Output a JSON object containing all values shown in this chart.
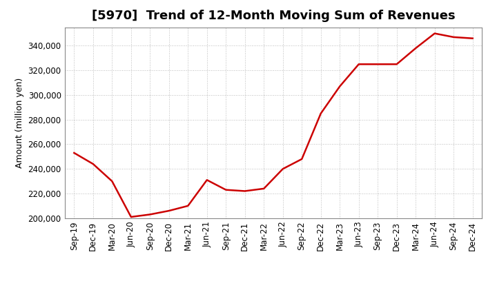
{
  "title": "[5970]  Trend of 12-Month Moving Sum of Revenues",
  "ylabel": "Amount (million yen)",
  "line_color": "#cc0000",
  "background_color": "#ffffff",
  "plot_bg_color": "#ffffff",
  "grid_color": "#aaaaaa",
  "ylim": [
    200000,
    355000
  ],
  "yticks": [
    200000,
    220000,
    240000,
    260000,
    280000,
    300000,
    320000,
    340000
  ],
  "x_labels": [
    "Sep-19",
    "Dec-19",
    "Mar-20",
    "Jun-20",
    "Sep-20",
    "Dec-20",
    "Mar-21",
    "Jun-21",
    "Sep-21",
    "Dec-21",
    "Mar-22",
    "Jun-22",
    "Sep-22",
    "Dec-22",
    "Mar-23",
    "Jun-23",
    "Sep-23",
    "Dec-23",
    "Mar-24",
    "Jun-24",
    "Sep-24",
    "Dec-24"
  ],
  "values": [
    253000,
    244000,
    230000,
    201000,
    203000,
    206000,
    210000,
    231000,
    223000,
    222000,
    224000,
    240000,
    248000,
    285000,
    307000,
    325000,
    325000,
    325000,
    338000,
    350000,
    347000,
    346000
  ],
  "title_fontsize": 13,
  "ylabel_fontsize": 9,
  "tick_fontsize": 8.5,
  "line_width": 1.8
}
